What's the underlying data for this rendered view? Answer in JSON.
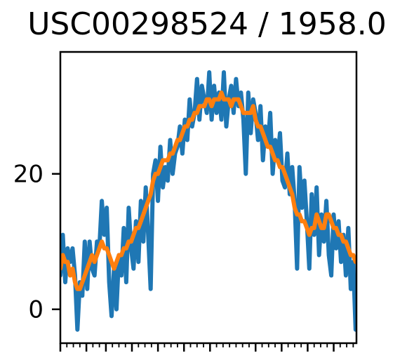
{
  "chart_data": {
    "type": "line",
    "title": "USC00298524 / 1958.0",
    "xlabel": "",
    "ylabel": "",
    "xlim": [
      1,
      365
    ],
    "ylim": [
      -5,
      38
    ],
    "yticks": [
      0,
      20
    ],
    "ytick_labels": [
      "0",
      "20"
    ],
    "xtick_labels": [],
    "grid": false,
    "legend": "none",
    "series": [
      {
        "color": "#1f77b4",
        "x": [
          1,
          4,
          7,
          10,
          13,
          16,
          19,
          22,
          25,
          28,
          31,
          34,
          37,
          40,
          43,
          46,
          49,
          52,
          55,
          58,
          61,
          64,
          67,
          70,
          73,
          76,
          79,
          82,
          85,
          88,
          91,
          94,
          97,
          100,
          103,
          106,
          109,
          112,
          115,
          118,
          121,
          124,
          127,
          130,
          133,
          136,
          139,
          142,
          145,
          148,
          151,
          154,
          157,
          160,
          163,
          166,
          169,
          172,
          175,
          178,
          181,
          184,
          187,
          190,
          193,
          196,
          199,
          202,
          205,
          208,
          211,
          214,
          217,
          220,
          223,
          226,
          229,
          232,
          235,
          238,
          241,
          244,
          247,
          250,
          253,
          256,
          259,
          262,
          265,
          268,
          271,
          274,
          277,
          280,
          283,
          286,
          289,
          292,
          295,
          298,
          301,
          304,
          307,
          310,
          313,
          316,
          319,
          322,
          325,
          328,
          331,
          334,
          337,
          340,
          343,
          346,
          349,
          352,
          355,
          358,
          361,
          364
        ],
        "values": [
          5,
          11,
          4,
          9,
          7,
          9,
          5,
          -3,
          4,
          2,
          10,
          3,
          10,
          6,
          5,
          10,
          9,
          16,
          11,
          15,
          4,
          -1,
          6,
          0,
          8,
          5,
          12,
          4,
          15,
          9,
          6,
          13,
          7,
          16,
          10,
          18,
          11,
          3,
          20,
          22,
          16,
          24,
          18,
          21,
          19,
          25,
          20,
          23,
          24,
          27,
          23,
          28,
          25,
          31,
          27,
          29,
          34,
          28,
          33,
          31,
          29,
          35,
          28,
          33,
          29,
          32,
          28,
          35,
          27,
          31,
          33,
          29,
          34,
          30,
          32,
          28,
          20,
          32,
          26,
          31,
          29,
          25,
          30,
          22,
          27,
          24,
          29,
          20,
          25,
          22,
          26,
          19,
          18,
          23,
          17,
          21,
          16,
          6,
          21,
          15,
          19,
          13,
          6,
          17,
          11,
          18,
          8,
          14,
          10,
          16,
          8,
          5,
          14,
          9,
          13,
          7,
          11,
          5,
          12,
          3,
          7,
          -3
        ]
      },
      {
        "color": "#ff7f0e",
        "x": [
          1,
          4,
          7,
          10,
          13,
          16,
          19,
          22,
          25,
          28,
          31,
          34,
          37,
          40,
          43,
          46,
          49,
          52,
          55,
          58,
          61,
          64,
          67,
          70,
          73,
          76,
          79,
          82,
          85,
          88,
          91,
          94,
          97,
          100,
          103,
          106,
          109,
          112,
          115,
          118,
          121,
          124,
          127,
          130,
          133,
          136,
          139,
          142,
          145,
          148,
          151,
          154,
          157,
          160,
          163,
          166,
          169,
          172,
          175,
          178,
          181,
          184,
          187,
          190,
          193,
          196,
          199,
          202,
          205,
          208,
          211,
          214,
          217,
          220,
          223,
          226,
          229,
          232,
          235,
          238,
          241,
          244,
          247,
          250,
          253,
          256,
          259,
          262,
          265,
          268,
          271,
          274,
          277,
          280,
          283,
          286,
          289,
          292,
          295,
          298,
          301,
          304,
          307,
          310,
          313,
          316,
          319,
          322,
          325,
          328,
          331,
          334,
          337,
          340,
          343,
          346,
          349,
          352,
          355,
          358,
          361,
          364
        ],
        "values": [
          6,
          8,
          7,
          7,
          5,
          6,
          4,
          3,
          3,
          4,
          5,
          6,
          7,
          8,
          7,
          8,
          9,
          10,
          9,
          9,
          8,
          7,
          6,
          7,
          8,
          8,
          9,
          9,
          10,
          10,
          11,
          12,
          12,
          13,
          14,
          15,
          16,
          17,
          19,
          20,
          20,
          21,
          22,
          22,
          22,
          23,
          23,
          24,
          25,
          25,
          26,
          27,
          27,
          28,
          28,
          29,
          29,
          30,
          30,
          30,
          31,
          31,
          30,
          31,
          31,
          31,
          32,
          31,
          31,
          31,
          30,
          31,
          31,
          31,
          30,
          29,
          29,
          29,
          29,
          30,
          28,
          27,
          27,
          26,
          25,
          24,
          24,
          23,
          22,
          22,
          21,
          21,
          20,
          19,
          18,
          17,
          15,
          14,
          14,
          13,
          13,
          12,
          11,
          12,
          12,
          14,
          13,
          12,
          12,
          14,
          14,
          13,
          12,
          12,
          11,
          11,
          10,
          10,
          9,
          8,
          8,
          7
        ]
      }
    ]
  }
}
